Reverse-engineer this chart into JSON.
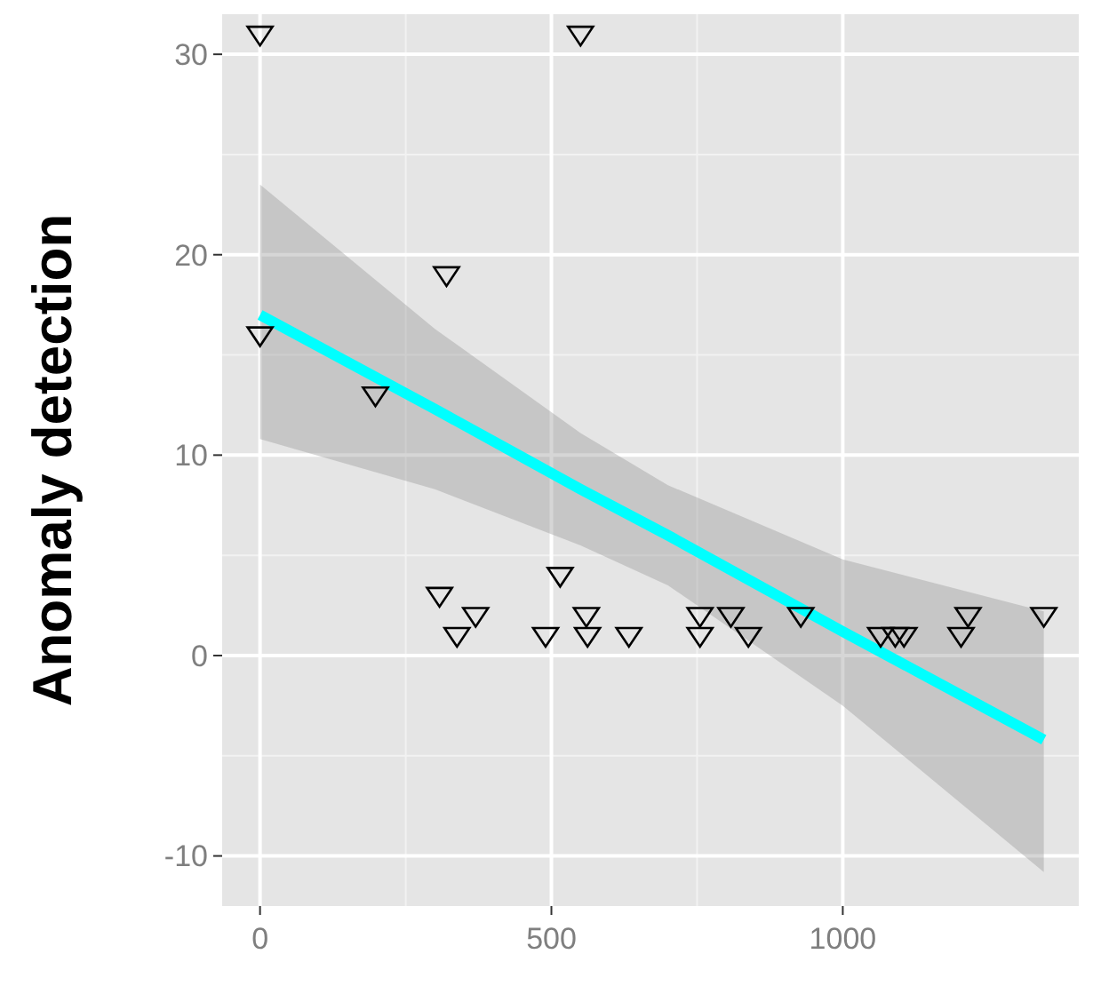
{
  "chart_data": {
    "type": "scatter",
    "ylabel": "Anomaly detection",
    "xlim": [
      -65,
      1405
    ],
    "ylim": [
      -12.5,
      32
    ],
    "xticks": [
      0,
      500,
      1000
    ],
    "yticks": [
      -10,
      0,
      10,
      20,
      30
    ],
    "grid": true,
    "series": [
      {
        "color": "#000000",
        "marker": "triangle",
        "x": [
          0,
          550,
          320,
          0,
          198,
          308,
          370,
          338,
          515,
          490,
          560,
          562,
          633,
          755,
          755,
          808,
          838,
          928,
          1065,
          1090,
          1105,
          1215,
          1203,
          1345
        ],
        "values": [
          31,
          31,
          19,
          16,
          13,
          3,
          2,
          1,
          4,
          1,
          2,
          1,
          1,
          2,
          1,
          2,
          1,
          2,
          1,
          1,
          1,
          2,
          1,
          2
        ]
      },
      {
        "type": "line",
        "color": "#00ffff",
        "x": [
          0,
          300,
          550,
          700,
          1000,
          1345
        ],
        "values": [
          17,
          12.3,
          8.3,
          6,
          1.2,
          -4.2
        ],
        "lower": [
          10.8,
          8.3,
          5.5,
          3.5,
          -2.5,
          -10.8
        ],
        "upper": [
          23.5,
          16.3,
          11.1,
          8.5,
          4.8,
          2.2
        ]
      }
    ]
  }
}
